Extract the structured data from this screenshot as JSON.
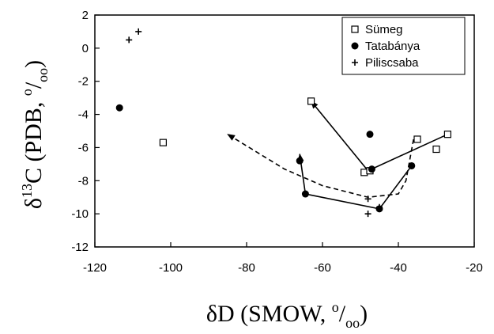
{
  "chart_data": {
    "type": "scatter",
    "title": "",
    "xlabel": {
      "lead": "δD (SMOW, ",
      "sup": "o",
      "slash": "/",
      "sub": "oo",
      "tail": ")"
    },
    "ylabel": {
      "lead": "δ",
      "sup13": "13",
      "mid": "C (PDB, ",
      "sup": "o",
      "slash": "/",
      "sub": "oo",
      "tail": ")"
    },
    "xlim": [
      -120,
      -20
    ],
    "ylim": [
      -12,
      2
    ],
    "xticks": [
      -120,
      -100,
      -80,
      -60,
      -40,
      -20
    ],
    "yticks": [
      -12,
      -10,
      -8,
      -6,
      -4,
      -2,
      0,
      2
    ],
    "grid": false,
    "legend_position": "top-right",
    "series": [
      {
        "name": "Sümeg",
        "marker": "square-open",
        "points": [
          [
            -102,
            -5.7
          ],
          [
            -63,
            -3.2
          ],
          [
            -49,
            -7.5
          ],
          [
            -47.5,
            -7.4
          ],
          [
            -35,
            -5.5
          ],
          [
            -30,
            -6.1
          ],
          [
            -27,
            -5.2
          ]
        ]
      },
      {
        "name": "Tatabánya",
        "marker": "circle-filled",
        "points": [
          [
            -113.5,
            -3.6
          ],
          [
            -66,
            -6.8
          ],
          [
            -64.5,
            -8.8
          ],
          [
            -47.5,
            -5.2
          ],
          [
            -47,
            -7.3
          ],
          [
            -45,
            -9.7
          ],
          [
            -36.5,
            -7.1
          ]
        ]
      },
      {
        "name": "Piliscsaba",
        "marker": "plus",
        "points": [
          [
            -111,
            0.5
          ],
          [
            -108.5,
            1.0
          ],
          [
            -48,
            -9.1
          ],
          [
            -48,
            -10.0
          ],
          [
            -45,
            -9.6
          ]
        ]
      }
    ],
    "trend_lines": [
      {
        "style": "solid",
        "arrow": true,
        "points": [
          [
            -27,
            -5.2
          ],
          [
            -48,
            -7.4
          ],
          [
            -63,
            -3.2
          ]
        ]
      },
      {
        "style": "solid",
        "arrow": true,
        "points": [
          [
            -36.5,
            -7.1
          ],
          [
            -45,
            -9.7
          ],
          [
            -64.5,
            -8.8
          ],
          [
            -66,
            -6.4
          ]
        ]
      },
      {
        "style": "dashed",
        "arrow": true,
        "points": [
          [
            -36,
            -5.5
          ],
          [
            -38,
            -8.0
          ],
          [
            -40,
            -8.8
          ],
          [
            -48,
            -9.0
          ],
          [
            -60,
            -8.3
          ],
          [
            -70,
            -7.3
          ],
          [
            -85,
            -5.2
          ]
        ]
      }
    ]
  }
}
